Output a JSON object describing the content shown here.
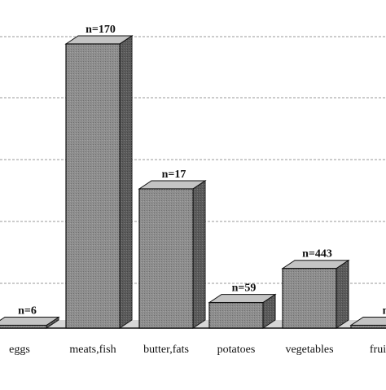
{
  "chart_data": {
    "type": "bar",
    "style": "3d",
    "grid": true,
    "categories": [
      "eggs",
      "meats,fish",
      "butter,fats",
      "potatoes",
      "vegetables",
      "frui"
    ],
    "series": [
      {
        "values": [
          1,
          100,
          49,
          9,
          21,
          1
        ],
        "labels": [
          "n=6",
          "n=170",
          "n=17",
          "n=59",
          "n=443",
          "n"
        ]
      }
    ],
    "ylim": [
      0,
      104
    ],
    "colors": {
      "front": "#8e8e8e",
      "top": "#c4c4c4",
      "side": "#5a5a5a",
      "floor": "#d6d6d6",
      "grid": "#9a9a9a",
      "edge": "#111111"
    }
  }
}
